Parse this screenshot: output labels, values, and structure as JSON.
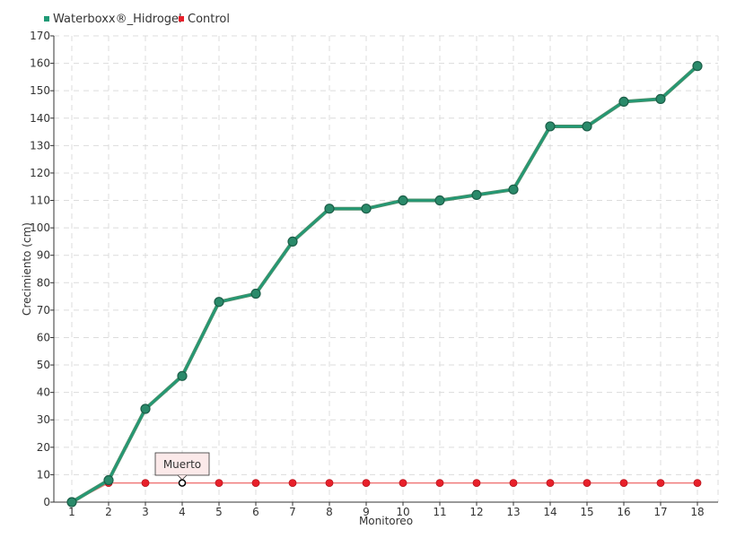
{
  "chart_data": {
    "type": "line",
    "categories": [
      "1",
      "2",
      "3",
      "4",
      "5",
      "6",
      "7",
      "8",
      "9",
      "10",
      "11",
      "12",
      "13",
      "14",
      "15",
      "16",
      "17",
      "18"
    ],
    "series": [
      {
        "name": "Waterboxx®_Hidrogel",
        "color": "#1f9a76",
        "values": [
          0,
          8,
          34,
          46,
          73,
          76,
          95,
          107,
          107,
          110,
          110,
          112,
          114,
          137,
          137,
          146,
          147,
          159
        ]
      },
      {
        "name": "Control",
        "color": "#e8202a",
        "values": [
          0,
          7,
          7,
          7,
          7,
          7,
          7,
          7,
          7,
          7,
          7,
          7,
          7,
          7,
          7,
          7,
          7,
          7
        ]
      }
    ],
    "xlabel": "Monitoreo",
    "ylabel": "Crecimiento (cm)",
    "ylim": [
      0,
      170
    ],
    "ytick_step": 10,
    "grid": true,
    "legend_position": "top-left",
    "annotations": [
      {
        "text": "Muerto",
        "series": "Control",
        "category": "4",
        "value": 7
      }
    ]
  }
}
